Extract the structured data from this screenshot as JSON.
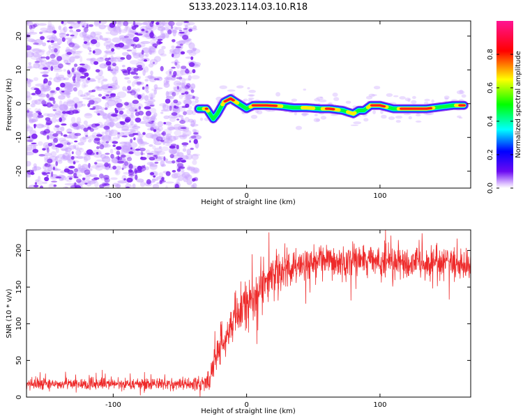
{
  "title": "S133.2023.114.03.10.R18",
  "chart_data": [
    {
      "type": "heatmap",
      "xlabel": "Height of straight line (km)",
      "ylabel": "Frequency (Hz)",
      "xlim": [
        -165,
        168
      ],
      "ylim": [
        -25,
        24.5
      ],
      "xticks": [
        -100,
        0,
        100
      ],
      "xtick_labels": [
        "-100",
        "0",
        "100"
      ],
      "yticks": [
        20,
        10,
        0,
        -10,
        -20
      ],
      "ytick_labels": [
        "20",
        "10",
        "0",
        "-10",
        "-20"
      ],
      "noise_region": {
        "x_from": -165,
        "x_to": -37,
        "color": "#7a1ff0"
      },
      "ridge": [
        {
          "x": -36,
          "y": -1.5,
          "a": 0.55
        },
        {
          "x": -30,
          "y": -1.5,
          "a": 0.85
        },
        {
          "x": -25,
          "y": -4.5,
          "a": 0.45
        },
        {
          "x": -22,
          "y": -3.0,
          "a": 0.5
        },
        {
          "x": -17,
          "y": 0.5,
          "a": 0.8
        },
        {
          "x": -12,
          "y": 1.5,
          "a": 0.95
        },
        {
          "x": -8,
          "y": 0.5,
          "a": 0.75
        },
        {
          "x": -4,
          "y": -0.5,
          "a": 0.65
        },
        {
          "x": 0,
          "y": -1.5,
          "a": 0.6
        },
        {
          "x": 5,
          "y": -0.5,
          "a": 0.85
        },
        {
          "x": 15,
          "y": -0.5,
          "a": 0.95
        },
        {
          "x": 25,
          "y": -0.7,
          "a": 0.75
        },
        {
          "x": 35,
          "y": -1.2,
          "a": 0.6
        },
        {
          "x": 45,
          "y": -1.2,
          "a": 0.8
        },
        {
          "x": 55,
          "y": -1.5,
          "a": 0.65
        },
        {
          "x": 62,
          "y": -1.5,
          "a": 0.9
        },
        {
          "x": 72,
          "y": -2.0,
          "a": 0.65
        },
        {
          "x": 80,
          "y": -3.0,
          "a": 0.8
        },
        {
          "x": 84,
          "y": -2.0,
          "a": 0.6
        },
        {
          "x": 88,
          "y": -2.0,
          "a": 0.65
        },
        {
          "x": 93,
          "y": -0.5,
          "a": 0.8
        },
        {
          "x": 100,
          "y": -0.5,
          "a": 0.9
        },
        {
          "x": 110,
          "y": -1.5,
          "a": 0.6
        },
        {
          "x": 120,
          "y": -1.5,
          "a": 0.95
        },
        {
          "x": 135,
          "y": -1.5,
          "a": 0.95
        },
        {
          "x": 145,
          "y": -1.0,
          "a": 0.55
        },
        {
          "x": 155,
          "y": -0.5,
          "a": 0.65
        },
        {
          "x": 163,
          "y": -0.5,
          "a": 0.95
        }
      ],
      "colorbar": {
        "label": "Normalized spectral amplitude",
        "range": [
          0.0,
          1.0
        ],
        "ticks": [
          0.0,
          0.2,
          0.4,
          0.6,
          0.8
        ],
        "tick_labels": [
          "0.0",
          "0.2",
          "0.4",
          "0.6",
          "0.8"
        ],
        "colors": [
          "#ffffff",
          "#6a0af2",
          "#0000ff",
          "#00ffff",
          "#00ff00",
          "#ffff00",
          "#ff0000",
          "#ff1493"
        ]
      }
    },
    {
      "type": "line",
      "xlabel": "Height of straight line (km)",
      "ylabel": "SNR (10 * v/v)",
      "xlim": [
        -165,
        168
      ],
      "ylim": [
        0,
        228
      ],
      "xticks": [
        -100,
        0,
        100
      ],
      "xtick_labels": [
        "-100",
        "0",
        "100"
      ],
      "yticks": [
        0,
        50,
        100,
        150,
        200
      ],
      "ytick_labels": [
        "0",
        "50",
        "100",
        "150",
        "200"
      ],
      "color": "#ee2a2a",
      "trend": [
        {
          "x": -165,
          "y": 18
        },
        {
          "x": -35,
          "y": 18
        },
        {
          "x": -28,
          "y": 22
        },
        {
          "x": -22,
          "y": 60
        },
        {
          "x": -15,
          "y": 90
        },
        {
          "x": -5,
          "y": 115
        },
        {
          "x": 5,
          "y": 140
        },
        {
          "x": 15,
          "y": 158
        },
        {
          "x": 25,
          "y": 170
        },
        {
          "x": 40,
          "y": 180
        },
        {
          "x": 60,
          "y": 184
        },
        {
          "x": 90,
          "y": 185
        },
        {
          "x": 120,
          "y": 182
        },
        {
          "x": 150,
          "y": 184
        },
        {
          "x": 168,
          "y": 178
        }
      ],
      "noise_amplitude": [
        {
          "x": -165,
          "y": 7
        },
        {
          "x": -35,
          "y": 7
        },
        {
          "x": -25,
          "y": 20
        },
        {
          "x": -10,
          "y": 30
        },
        {
          "x": 20,
          "y": 24
        },
        {
          "x": 60,
          "y": 20
        },
        {
          "x": 168,
          "y": 18
        }
      ]
    }
  ]
}
